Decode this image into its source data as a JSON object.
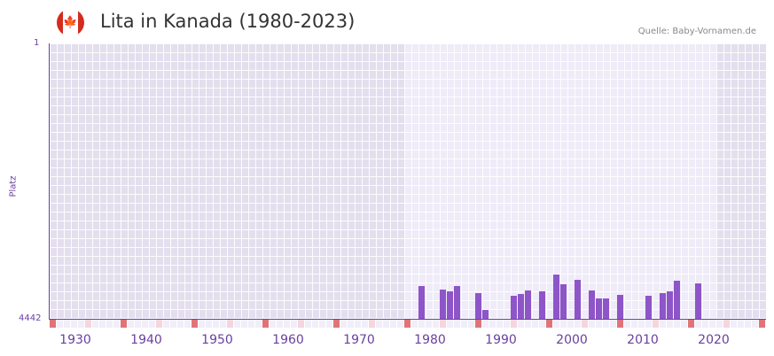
{
  "header": {
    "flag_icon": "canada-flag-icon",
    "flag_glyph": "🍁",
    "title": "Lita in Kanada (1980-2023)",
    "source": "Quelle: Baby-Vornamen.de"
  },
  "colors": {
    "bar": "#8e55c9",
    "axis": "#6a3fa0",
    "bg_outside": "#e3dfee",
    "bg_inside": "#efebf8",
    "marker_decade": "#e0737a",
    "marker_half": "#f5d5de",
    "marker_default": "#f1eefa"
  },
  "chart_data": {
    "type": "bar",
    "title": "Lita in Kanada (1980-2023)",
    "xlabel": "",
    "ylabel": "Platz",
    "ylim": [
      4442,
      1
    ],
    "y_inverted": true,
    "y_ticks": [
      "1",
      "4442"
    ],
    "x_ticks": [
      "1930",
      "1940",
      "1950",
      "1960",
      "1970",
      "1980",
      "1990",
      "2000",
      "2010",
      "2020"
    ],
    "x_range": [
      1928,
      2028
    ],
    "highlight_range": [
      1978,
      2021
    ],
    "grid": true,
    "legend": null,
    "categories": [
      1980,
      1983,
      1984,
      1985,
      1988,
      1989,
      1993,
      1994,
      1995,
      1997,
      1999,
      2000,
      2002,
      2004,
      2005,
      2006,
      2008,
      2012,
      2014,
      2015,
      2016,
      2019
    ],
    "values": [
      3912,
      3969,
      3998,
      3912,
      4026,
      4299,
      4069,
      4041,
      3983,
      3998,
      3726,
      3883,
      3812,
      3983,
      4112,
      4112,
      4055,
      4069,
      4026,
      3998,
      3826,
      3869
    ]
  },
  "axis": {
    "y_top": "1",
    "y_bottom": "4442",
    "y_title": "Platz",
    "x_labels": [
      "1930",
      "1940",
      "1950",
      "1960",
      "1970",
      "1980",
      "1990",
      "2000",
      "2010",
      "2020"
    ]
  }
}
